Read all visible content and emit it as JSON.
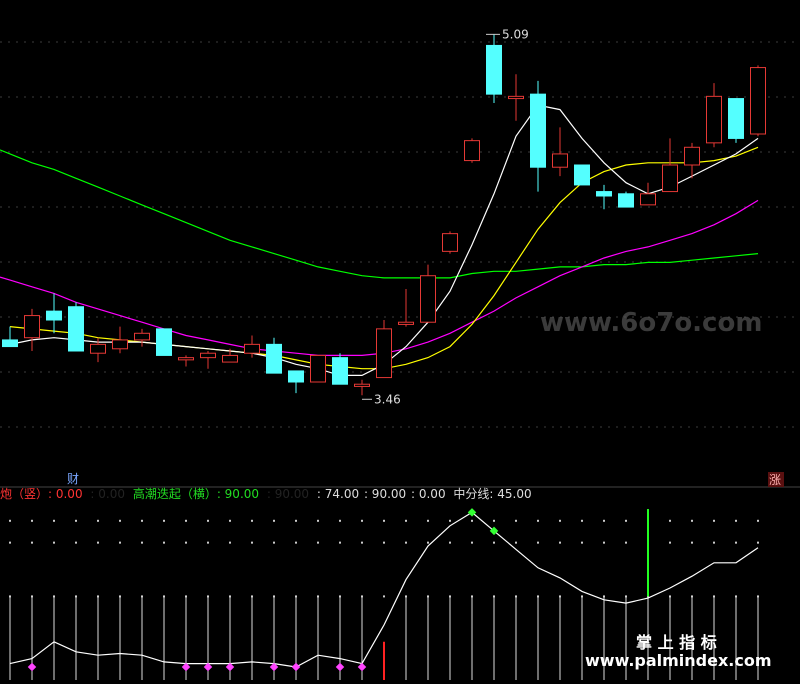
{
  "chart_data": [
    {
      "type": "candlestick",
      "title": "",
      "colors": {
        "background": "#000000",
        "up": "#e53935",
        "down": "#54ffff",
        "ma_white": "#ffffff",
        "ma_yellow": "#ffff00",
        "ma_magenta": "#ff00ff",
        "ma_green": "#00ff00",
        "grid": "#555555"
      },
      "price_range": [
        3.1,
        5.2
      ],
      "high_label": "5.09",
      "low_label": "3.46",
      "candles": [
        {
          "o": 3.71,
          "h": 3.77,
          "l": 3.68,
          "c": 3.68
        },
        {
          "o": 3.72,
          "h": 3.85,
          "l": 3.66,
          "c": 3.82
        },
        {
          "o": 3.84,
          "h": 3.92,
          "l": 3.74,
          "c": 3.8
        },
        {
          "o": 3.86,
          "h": 3.88,
          "l": 3.66,
          "c": 3.66
        },
        {
          "o": 3.65,
          "h": 3.72,
          "l": 3.61,
          "c": 3.69
        },
        {
          "o": 3.67,
          "h": 3.77,
          "l": 3.65,
          "c": 3.71
        },
        {
          "o": 3.71,
          "h": 3.76,
          "l": 3.68,
          "c": 3.74
        },
        {
          "o": 3.76,
          "h": 3.76,
          "l": 3.64,
          "c": 3.64
        },
        {
          "o": 3.62,
          "h": 3.64,
          "l": 3.59,
          "c": 3.63
        },
        {
          "o": 3.63,
          "h": 3.66,
          "l": 3.58,
          "c": 3.65
        },
        {
          "o": 3.61,
          "h": 3.67,
          "l": 3.61,
          "c": 3.64
        },
        {
          "o": 3.65,
          "h": 3.73,
          "l": 3.63,
          "c": 3.69
        },
        {
          "o": 3.69,
          "h": 3.72,
          "l": 3.56,
          "c": 3.56
        },
        {
          "o": 3.57,
          "h": 3.57,
          "l": 3.47,
          "c": 3.52
        },
        {
          "o": 3.52,
          "h": 3.64,
          "l": 3.52,
          "c": 3.64
        },
        {
          "o": 3.63,
          "h": 3.65,
          "l": 3.51,
          "c": 3.51
        },
        {
          "o": 3.5,
          "h": 3.53,
          "l": 3.46,
          "c": 3.51
        },
        {
          "o": 3.54,
          "h": 3.8,
          "l": 3.54,
          "c": 3.76
        },
        {
          "o": 3.78,
          "h": 3.94,
          "l": 3.77,
          "c": 3.79
        },
        {
          "o": 3.79,
          "h": 4.05,
          "l": 3.79,
          "c": 4.0
        },
        {
          "o": 4.11,
          "h": 4.2,
          "l": 4.1,
          "c": 4.19
        },
        {
          "o": 4.52,
          "h": 4.62,
          "l": 4.51,
          "c": 4.61
        },
        {
          "o": 5.04,
          "h": 5.09,
          "l": 4.78,
          "c": 4.82
        },
        {
          "o": 4.8,
          "h": 4.91,
          "l": 4.7,
          "c": 4.81
        },
        {
          "o": 4.82,
          "h": 4.88,
          "l": 4.38,
          "c": 4.49
        },
        {
          "o": 4.49,
          "h": 4.67,
          "l": 4.45,
          "c": 4.55
        },
        {
          "o": 4.5,
          "h": 4.5,
          "l": 4.41,
          "c": 4.41
        },
        {
          "o": 4.38,
          "h": 4.41,
          "l": 4.3,
          "c": 4.36
        },
        {
          "o": 4.37,
          "h": 4.38,
          "l": 4.31,
          "c": 4.31
        },
        {
          "o": 4.32,
          "h": 4.42,
          "l": 4.32,
          "c": 4.37
        },
        {
          "o": 4.38,
          "h": 4.62,
          "l": 4.38,
          "c": 4.5
        },
        {
          "o": 4.5,
          "h": 4.6,
          "l": 4.44,
          "c": 4.58
        },
        {
          "o": 4.6,
          "h": 4.87,
          "l": 4.58,
          "c": 4.81
        },
        {
          "o": 4.8,
          "h": 4.8,
          "l": 4.6,
          "c": 4.62
        },
        {
          "o": 4.64,
          "h": 4.95,
          "l": 4.63,
          "c": 4.94
        }
      ],
      "ma_white": [
        3.69,
        3.71,
        3.72,
        3.71,
        3.7,
        3.7,
        3.7,
        3.69,
        3.68,
        3.67,
        3.66,
        3.65,
        3.63,
        3.6,
        3.58,
        3.55,
        3.55,
        3.6,
        3.68,
        3.79,
        3.93,
        4.14,
        4.37,
        4.63,
        4.77,
        4.75,
        4.62,
        4.51,
        4.42,
        4.37,
        4.4,
        4.45,
        4.5,
        4.55,
        4.62
      ],
      "ma_yellow": [
        3.77,
        3.76,
        3.75,
        3.74,
        3.72,
        3.71,
        3.7,
        3.69,
        3.68,
        3.67,
        3.66,
        3.65,
        3.64,
        3.62,
        3.6,
        3.59,
        3.58,
        3.58,
        3.6,
        3.63,
        3.68,
        3.78,
        3.91,
        4.06,
        4.21,
        4.33,
        4.42,
        4.47,
        4.5,
        4.51,
        4.51,
        4.51,
        4.52,
        4.54,
        4.58
      ],
      "ma_magenta": [
        3.98,
        3.95,
        3.92,
        3.88,
        3.85,
        3.82,
        3.79,
        3.76,
        3.73,
        3.71,
        3.69,
        3.67,
        3.66,
        3.65,
        3.64,
        3.64,
        3.64,
        3.65,
        3.67,
        3.7,
        3.74,
        3.79,
        3.84,
        3.9,
        3.95,
        4.0,
        4.04,
        4.08,
        4.11,
        4.13,
        4.16,
        4.19,
        4.23,
        4.28,
        4.34
      ],
      "ma_green": [
        4.55,
        4.51,
        4.48,
        4.44,
        4.4,
        4.36,
        4.32,
        4.28,
        4.24,
        4.2,
        4.16,
        4.13,
        4.1,
        4.07,
        4.04,
        4.02,
        4.0,
        3.99,
        3.99,
        3.99,
        3.99,
        4.01,
        4.02,
        4.02,
        4.03,
        4.04,
        4.04,
        4.05,
        4.05,
        4.06,
        4.06,
        4.07,
        4.08,
        4.09,
        4.1
      ]
    },
    {
      "type": "line",
      "title": "",
      "ylim": [
        0,
        100
      ],
      "line_values": [
        5,
        8,
        18,
        12,
        10,
        11,
        10,
        6,
        5,
        5,
        5,
        6,
        5,
        3,
        10,
        8,
        5,
        28,
        55,
        75,
        87,
        95,
        84,
        73,
        62,
        56,
        48,
        43,
        41,
        44,
        50,
        57,
        65,
        65,
        74
      ],
      "bottom_markers": [
        1,
        8,
        9,
        10,
        12,
        13,
        15,
        16
      ],
      "top_markers": [
        21,
        22
      ],
      "red_bar_index": 17,
      "green_bar_index": 29,
      "legend": {
        "parts": [
          {
            "text": "炮（竖）: 0.00",
            "color": "#ff3333"
          },
          {
            "text": ": 0.00",
            "color": "#222222"
          },
          {
            "text": "高潮迭起（横）: 90.00",
            "color": "#22dd22"
          },
          {
            "text": ": 90.00",
            "color": "#222222"
          },
          {
            "text": ": 74.00",
            "color": "#dddddd"
          },
          {
            "text": ": 90.00",
            "color": "#dddddd"
          },
          {
            "text": ": 0.00",
            "color": "#dddddd"
          },
          {
            "text": "中分线: 45.00",
            "color": "#dddddd"
          }
        ]
      },
      "level_labels": [
        "90",
        "45"
      ]
    }
  ],
  "badges": {
    "cai": "财",
    "zhang": "涨"
  },
  "watermarks": {
    "main": "www.6o7o.com",
    "brand_cn": "掌 上 指 标",
    "brand_url": "www.palmindex.com"
  }
}
